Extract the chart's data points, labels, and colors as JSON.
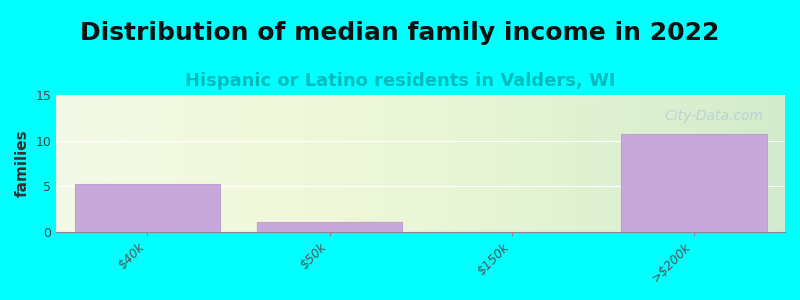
{
  "title": "Distribution of median family income in 2022",
  "subtitle": "Hispanic or Latino residents in Valders, WI",
  "xlabel": "",
  "ylabel": "families",
  "background_color": "#00FFFF",
  "plot_bg_start": "#e8f5e0",
  "plot_bg_end": "#ffffff",
  "bar_color": "#c8a8d8",
  "bar_edge_color": "#c0a0d0",
  "categories": [
    "$40k",
    "$50k",
    "$150k",
    ">$200k"
  ],
  "values": [
    5.2,
    1.1,
    0,
    10.7
  ],
  "bar_positions": [
    0,
    1,
    2,
    3
  ],
  "ylim": [
    0,
    15
  ],
  "yticks": [
    0,
    5,
    10,
    15
  ],
  "title_fontsize": 18,
  "subtitle_fontsize": 13,
  "ylabel_fontsize": 11,
  "tick_label_fontsize": 9,
  "watermark_text": "City-Data.com",
  "watermark_color": "#b0c8d0",
  "watermark_alpha": 0.7
}
